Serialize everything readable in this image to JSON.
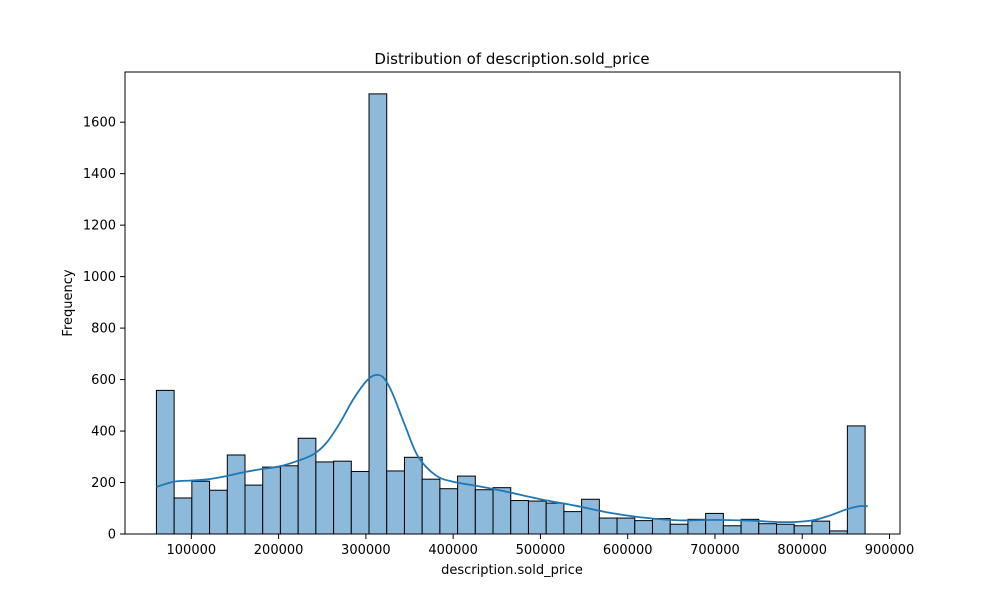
{
  "chart_data": {
    "type": "bar",
    "title": "Distribution of description.sold_price",
    "xlabel": "description.sold_price",
    "ylabel": "Frequency",
    "xlim": [
      24000,
      912000
    ],
    "ylim": [
      0,
      1795
    ],
    "x_ticks": [
      100000,
      200000,
      300000,
      400000,
      500000,
      600000,
      700000,
      800000,
      900000
    ],
    "y_ticks": [
      0,
      200,
      400,
      600,
      800,
      1000,
      1200,
      1400,
      1600
    ],
    "grid": false,
    "legend": "none",
    "bin_start": 60000,
    "bin_width": 20300,
    "values": [
      558,
      140,
      205,
      170,
      307,
      190,
      260,
      265,
      372,
      280,
      283,
      243,
      1710,
      245,
      298,
      213,
      176,
      225,
      172,
      180,
      130,
      128,
      120,
      87,
      135,
      62,
      62,
      52,
      60,
      38,
      57,
      80,
      32,
      57,
      40,
      38,
      32,
      50,
      12,
      420
    ],
    "kde": {
      "x": [
        60000,
        80000,
        100000,
        120000,
        140000,
        160000,
        180000,
        200000,
        220000,
        240000,
        255000,
        270000,
        285000,
        300000,
        310000,
        320000,
        330000,
        345000,
        360000,
        380000,
        400000,
        430000,
        460000,
        500000,
        540000,
        580000,
        620000,
        660000,
        700000,
        740000,
        780000,
        810000,
        830000,
        850000,
        865000,
        875000
      ],
      "y": [
        183,
        203,
        208,
        213,
        225,
        240,
        252,
        262,
        282,
        310,
        355,
        430,
        520,
        592,
        617,
        608,
        550,
        420,
        300,
        228,
        203,
        185,
        165,
        135,
        110,
        82,
        63,
        53,
        55,
        52,
        46,
        52,
        70,
        95,
        108,
        108
      ]
    },
    "colors": {
      "bar_fill": "#8db9db",
      "bar_edge": "#000000",
      "kde_line": "#1f77b4"
    }
  }
}
